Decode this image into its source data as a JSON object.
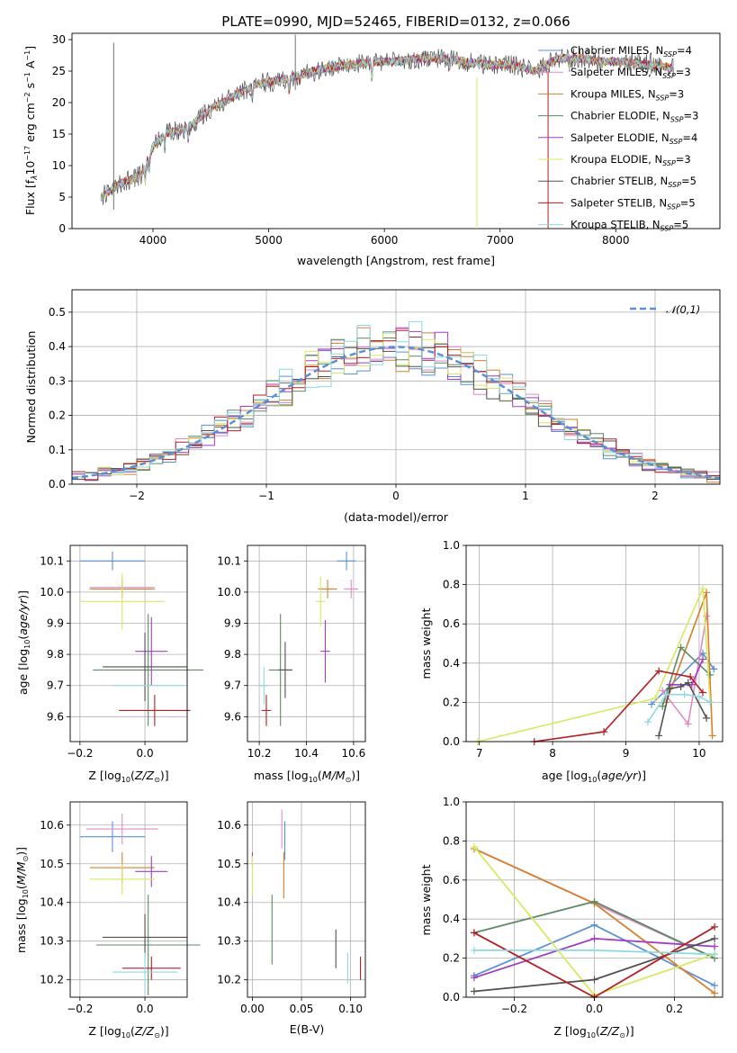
{
  "title": "PLATE=0990, MJD=52465, FIBERID=0132, z=0.066",
  "colors": {
    "Chabrier MILES": "#5b8fd6",
    "Salpeter MILES": "#e08bc8",
    "Kroupa MILES": "#d67f2e",
    "Chabrier ELODIE": "#5c8a65",
    "Salpeter ELODIE": "#a23cc0",
    "Kroupa ELODIE": "#d8e860",
    "Chabrier STELIB": "#505050",
    "Salpeter STELIB": "#b21e22",
    "Kroupa STELIB": "#8fd7e0"
  },
  "chart_data": [
    {
      "id": "spectrum",
      "type": "line",
      "xlabel": "wavelength [Angstrom, rest frame]",
      "ylabel": "Flux [f_λ 10^-17 erg cm^-2 s^-1 A^-1]",
      "xlim": [
        3300,
        8900
      ],
      "ylim": [
        0,
        31
      ],
      "xticks": [
        4000,
        5000,
        6000,
        7000,
        8000
      ],
      "yticks": [
        0,
        5,
        10,
        15,
        20,
        25,
        30
      ],
      "grid": false,
      "legend": "upper right",
      "continuum": {
        "wavelength": [
          3550,
          3700,
          3900,
          4000,
          4100,
          4300,
          4500,
          4700,
          4900,
          5100,
          5300,
          5500,
          5700,
          5900,
          6100,
          6300,
          6500,
          6700,
          6900,
          7100,
          7300,
          7500,
          7700,
          7900,
          8100,
          8300,
          8500
        ],
        "flux": [
          5,
          7,
          8.5,
          13,
          15,
          16,
          19,
          21,
          23,
          23.5,
          24.5,
          25.5,
          26,
          26.5,
          26.5,
          27,
          27,
          26.5,
          26,
          26,
          25,
          27,
          27,
          26.5,
          26.5,
          26,
          25.5
        ]
      },
      "series": [
        {
          "name": "Chabrier MILES",
          "n_ssp": "4"
        },
        {
          "name": "Salpeter MILES",
          "n_ssp": "3"
        },
        {
          "name": "Kroupa MILES",
          "n_ssp": "3"
        },
        {
          "name": "Chabrier ELODIE",
          "n_ssp": "3"
        },
        {
          "name": "Salpeter ELODIE",
          "n_ssp": "4"
        },
        {
          "name": "Kroupa ELODIE",
          "n_ssp": "3"
        },
        {
          "name": "Chabrier STELIB",
          "n_ssp": "5"
        },
        {
          "name": "Salpeter STELIB",
          "n_ssp": "5"
        },
        {
          "name": "Kroupa STELIB",
          "n_ssp": "5"
        }
      ]
    },
    {
      "id": "residuals",
      "type": "histogram",
      "xlabel": "(data-model)/error",
      "ylabel": "Normed distribution",
      "xlim": [
        -2.5,
        2.5
      ],
      "ylim": [
        0,
        0.565
      ],
      "xticks": [
        -2,
        -1,
        0,
        1,
        2
      ],
      "yticks": [
        0.0,
        0.1,
        0.2,
        0.3,
        0.4,
        0.5
      ],
      "grid": true,
      "legend": "upper right",
      "reference": {
        "name": "𝒩(0,1)",
        "mean": 0,
        "sigma": 1
      },
      "bin_width": 0.1
    },
    {
      "id": "age-vs-Z",
      "type": "scatter",
      "xlabel": "Z [log10(Z/Z☉)]",
      "ylabel": "age [log10(age/yr)]",
      "xlim": [
        -0.23,
        0.13
      ],
      "ylim": [
        9.52,
        10.15
      ],
      "xticks": [
        -0.2,
        0.0
      ],
      "yticks": [
        9.6,
        9.7,
        9.8,
        9.9,
        10.0,
        10.1
      ],
      "grid": true,
      "points": [
        {
          "name": "Chabrier MILES",
          "x": -0.1,
          "y": 10.1,
          "xerr": 0.1,
          "yerr": 0.03
        },
        {
          "name": "Salpeter MILES",
          "x": -0.07,
          "y": 10.015,
          "xerr": 0.1,
          "yerr": 0.0
        },
        {
          "name": "Kroupa MILES",
          "x": -0.07,
          "y": 10.01,
          "xerr": 0.1,
          "yerr": 0.03
        },
        {
          "name": "Chabrier ELODIE",
          "x": 0.01,
          "y": 9.75,
          "xerr": 0.17,
          "yerr": 0.18
        },
        {
          "name": "Salpeter ELODIE",
          "x": 0.02,
          "y": 9.81,
          "xerr": 0.05,
          "yerr": 0.11
        },
        {
          "name": "Kroupa ELODIE",
          "x": -0.07,
          "y": 9.97,
          "xerr": 0.13,
          "yerr": 0.09
        },
        {
          "name": "Chabrier STELIB",
          "x": 0.0,
          "y": 9.76,
          "xerr": 0.13,
          "yerr": 0.11
        },
        {
          "name": "Salpeter STELIB",
          "x": 0.03,
          "y": 9.62,
          "xerr": 0.11,
          "yerr": 0.05
        },
        {
          "name": "Kroupa STELIB",
          "x": 0.01,
          "y": 9.7,
          "xerr": 0.11,
          "yerr": 0.0
        }
      ]
    },
    {
      "id": "age-vs-mass",
      "type": "scatter",
      "xlabel": "mass [log10(M/M☉)]",
      "ylabel": "",
      "xlim": [
        10.15,
        10.65
      ],
      "ylim": [
        9.52,
        10.15
      ],
      "xticks": [
        10.2,
        10.4,
        10.6
      ],
      "yticks": [
        9.6,
        9.7,
        9.8,
        9.9,
        10.0,
        10.1
      ],
      "grid": true,
      "points": [
        {
          "name": "Chabrier MILES",
          "x": 10.57,
          "y": 10.1,
          "xerr": 0.04,
          "yerr": 0.03
        },
        {
          "name": "Salpeter MILES",
          "x": 10.59,
          "y": 10.01,
          "xerr": 0.03,
          "yerr": 0.03
        },
        {
          "name": "Kroupa MILES",
          "x": 10.49,
          "y": 10.01,
          "xerr": 0.04,
          "yerr": 0.03
        },
        {
          "name": "Chabrier ELODIE",
          "x": 10.29,
          "y": 9.75,
          "xerr": 0.05,
          "yerr": 0.18
        },
        {
          "name": "Salpeter ELODIE",
          "x": 10.48,
          "y": 9.81,
          "xerr": 0.02,
          "yerr": 0.1
        },
        {
          "name": "Kroupa ELODIE",
          "x": 10.46,
          "y": 9.97,
          "xerr": 0.02,
          "yerr": 0.08
        },
        {
          "name": "Chabrier STELIB",
          "x": 10.31,
          "y": 9.75,
          "xerr": 0.03,
          "yerr": 0.09
        },
        {
          "name": "Salpeter STELIB",
          "x": 10.23,
          "y": 9.62,
          "xerr": 0.02,
          "yerr": 0.05
        },
        {
          "name": "Kroupa STELIB",
          "x": 10.22,
          "y": 9.7,
          "xerr": 0.02,
          "yerr": 0.06
        }
      ]
    },
    {
      "id": "mass-weight-vs-age",
      "type": "line",
      "xlabel": "age [log10(age/yr)]",
      "ylabel": "mass weight",
      "xlim": [
        6.82,
        10.32
      ],
      "ylim": [
        0,
        1
      ],
      "xticks": [
        7,
        8,
        9,
        10
      ],
      "yticks": [
        0.0,
        0.2,
        0.4,
        0.6,
        0.8,
        1.0
      ],
      "grid": true,
      "series": [
        {
          "name": "Chabrier MILES",
          "x": [
            9.35,
            10.05,
            10.2
          ],
          "y": [
            0.19,
            0.45,
            0.37
          ]
        },
        {
          "name": "Salpeter MILES",
          "x": [
            9.5,
            9.85,
            10.1
          ],
          "y": [
            0.26,
            0.09,
            0.64
          ]
        },
        {
          "name": "Kroupa MILES",
          "x": [
            9.55,
            10.1,
            10.18
          ],
          "y": [
            0.2,
            0.76,
            0.03
          ]
        },
        {
          "name": "Chabrier ELODIE",
          "x": [
            9.5,
            9.75,
            10.15
          ],
          "y": [
            0.18,
            0.48,
            0.34
          ]
        },
        {
          "name": "Salpeter ELODIE",
          "x": [
            9.6,
            9.9,
            10.05
          ],
          "y": [
            0.29,
            0.29,
            0.42
          ]
        },
        {
          "name": "Kroupa ELODIE",
          "x": [
            6.98,
            9.4,
            10.05,
            10.15
          ],
          "y": [
            0.0,
            0.22,
            0.78,
            0.2
          ]
        },
        {
          "name": "Chabrier STELIB",
          "x": [
            9.45,
            9.6,
            9.75,
            9.85,
            10.1
          ],
          "y": [
            0.03,
            0.27,
            0.28,
            0.3,
            0.12
          ]
        },
        {
          "name": "Salpeter STELIB",
          "x": [
            7.75,
            8.7,
            9.45,
            9.88,
            10.05
          ],
          "y": [
            0.0,
            0.05,
            0.36,
            0.33,
            0.25
          ]
        },
        {
          "name": "Kroupa STELIB",
          "x": [
            9.3,
            9.55,
            9.8,
            10.0,
            10.15
          ],
          "y": [
            0.1,
            0.24,
            0.24,
            0.23,
            0.2
          ]
        }
      ]
    },
    {
      "id": "mass-vs-Z",
      "type": "scatter",
      "xlabel": "Z [log10(Z/Z☉)]",
      "ylabel": "mass [log10(M/M☉)]",
      "xlim": [
        -0.23,
        0.13
      ],
      "ylim": [
        10.155,
        10.66
      ],
      "xticks": [
        -0.2,
        0.0
      ],
      "yticks": [
        10.2,
        10.3,
        10.4,
        10.5,
        10.6
      ],
      "grid": true,
      "points": [
        {
          "name": "Chabrier MILES",
          "x": -0.1,
          "y": 10.57,
          "xerr": 0.1,
          "yerr": 0.04
        },
        {
          "name": "Salpeter MILES",
          "x": -0.07,
          "y": 10.59,
          "xerr": 0.11,
          "yerr": 0.04
        },
        {
          "name": "Kroupa MILES",
          "x": -0.07,
          "y": 10.49,
          "xerr": 0.1,
          "yerr": 0.04
        },
        {
          "name": "Chabrier ELODIE",
          "x": 0.01,
          "y": 10.29,
          "xerr": 0.16,
          "yerr": 0.13
        },
        {
          "name": "Salpeter ELODIE",
          "x": 0.02,
          "y": 10.48,
          "xerr": 0.05,
          "yerr": 0.04
        },
        {
          "name": "Kroupa ELODIE",
          "x": -0.07,
          "y": 10.46,
          "xerr": 0.1,
          "yerr": 0.04
        },
        {
          "name": "Chabrier STELIB",
          "x": 0.0,
          "y": 10.31,
          "xerr": 0.13,
          "yerr": 0.06
        },
        {
          "name": "Salpeter STELIB",
          "x": 0.02,
          "y": 10.23,
          "xerr": 0.09,
          "yerr": 0.03
        },
        {
          "name": "Kroupa STELIB",
          "x": 0.0,
          "y": 10.22,
          "xerr": 0.1,
          "yerr": 0.05
        }
      ]
    },
    {
      "id": "mass-vs-ebv",
      "type": "scatter",
      "xlabel": "E(B-V)",
      "ylabel": "",
      "xlim": [
        -0.005,
        0.115
      ],
      "ylim": [
        10.155,
        10.66
      ],
      "xticks": [
        0.0,
        0.05,
        0.1
      ],
      "xticklabels": [
        "0.00",
        "0.05",
        "0.10"
      ],
      "yticks": [
        10.2,
        10.3,
        10.4,
        10.5,
        10.6
      ],
      "grid": true,
      "points": [
        {
          "name": "Chabrier MILES",
          "x": 0.033,
          "y": 10.56,
          "xerr": 0,
          "yerr": 0.05
        },
        {
          "name": "Salpeter MILES",
          "x": 0.03,
          "y": 10.59,
          "xerr": 0,
          "yerr": 0.05
        },
        {
          "name": "Kroupa MILES",
          "x": 0.032,
          "y": 10.47,
          "xerr": 0,
          "yerr": 0.06
        },
        {
          "name": "Chabrier ELODIE",
          "x": 0.02,
          "y": 10.33,
          "xerr": 0,
          "yerr": 0.09
        },
        {
          "name": "Salpeter ELODIE",
          "x": 0.0,
          "y": 10.51,
          "xerr": 0,
          "yerr": 0.02
        },
        {
          "name": "Kroupa ELODIE",
          "x": 0.0,
          "y": 10.47,
          "xerr": 0,
          "yerr": 0.05
        },
        {
          "name": "Chabrier STELIB",
          "x": 0.085,
          "y": 10.28,
          "xerr": 0,
          "yerr": 0.05
        },
        {
          "name": "Salpeter STELIB",
          "x": 0.11,
          "y": 10.23,
          "xerr": 0,
          "yerr": 0.03
        },
        {
          "name": "Kroupa STELIB",
          "x": 0.097,
          "y": 10.23,
          "xerr": 0,
          "yerr": 0.04
        }
      ]
    },
    {
      "id": "mass-weight-vs-Z",
      "type": "line",
      "xlabel": "Z [log10(Z/Z☉)]",
      "ylabel": "mass weight",
      "xlim": [
        -0.32,
        0.32
      ],
      "ylim": [
        0,
        1
      ],
      "xticks": [
        -0.2,
        0.0,
        0.2
      ],
      "yticks": [
        0.0,
        0.2,
        0.4,
        0.6,
        0.8,
        1.0
      ],
      "grid": true,
      "series": [
        {
          "name": "Chabrier MILES",
          "x": [
            -0.3,
            0.0,
            0.3
          ],
          "y": [
            0.11,
            0.37,
            0.06
          ]
        },
        {
          "name": "Salpeter MILES",
          "x": [
            -0.3,
            0.0,
            0.3
          ],
          "y": [
            0.76,
            0.48,
            0.2
          ]
        },
        {
          "name": "Kroupa MILES",
          "x": [
            -0.3,
            0.0,
            0.3
          ],
          "y": [
            0.76,
            0.48,
            0.02
          ]
        },
        {
          "name": "Chabrier ELODIE",
          "x": [
            -0.3,
            0.0,
            0.3
          ],
          "y": [
            0.33,
            0.49,
            0.2
          ]
        },
        {
          "name": "Salpeter ELODIE",
          "x": [
            -0.3,
            0.0,
            0.3
          ],
          "y": [
            0.1,
            0.3,
            0.26
          ]
        },
        {
          "name": "Kroupa ELODIE",
          "x": [
            -0.3,
            0.0,
            0.3
          ],
          "y": [
            0.77,
            0.01,
            0.22
          ]
        },
        {
          "name": "Chabrier STELIB",
          "x": [
            -0.3,
            0.0,
            0.3
          ],
          "y": [
            0.03,
            0.09,
            0.3
          ]
        },
        {
          "name": "Salpeter STELIB",
          "x": [
            -0.3,
            0.0,
            0.3
          ],
          "y": [
            0.33,
            0.0,
            0.36
          ]
        },
        {
          "name": "Kroupa STELIB",
          "x": [
            -0.3,
            0.0,
            0.3
          ],
          "y": [
            0.24,
            0.24,
            0.22
          ]
        }
      ]
    }
  ]
}
